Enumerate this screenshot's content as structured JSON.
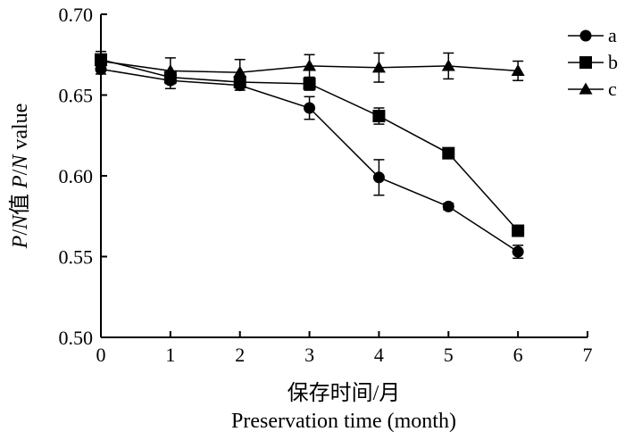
{
  "chart_data": {
    "type": "line",
    "xlabel_cn": "保存时间/月",
    "xlabel_en": "Preservation time (month)",
    "ylabel": {
      "p1": "P",
      "s1": "/",
      "n1": "N",
      "cn": "值 ",
      "p2": "P",
      "s2": "/",
      "n2": "N",
      "en": " value"
    },
    "xlim": [
      0,
      7
    ],
    "ylim": [
      0.5,
      0.7
    ],
    "x_ticks": [
      "0",
      "1",
      "2",
      "3",
      "4",
      "5",
      "6",
      "7"
    ],
    "y_ticks": [
      "0.50",
      "0.55",
      "0.60",
      "0.65",
      "0.70"
    ],
    "x_tick_values": [
      0,
      1,
      2,
      3,
      4,
      5,
      6,
      7
    ],
    "y_tick_values": [
      0.5,
      0.55,
      0.6,
      0.65,
      0.7
    ],
    "x": [
      0,
      1,
      2,
      3,
      4,
      5,
      6
    ],
    "series": [
      {
        "name": "a",
        "marker": "circle",
        "values": [
          0.666,
          0.659,
          0.656,
          0.642,
          0.599,
          0.581,
          0.553
        ],
        "errors": [
          0.003,
          0.005,
          0.003,
          0.007,
          0.011,
          0.002,
          0.004
        ]
      },
      {
        "name": "b",
        "marker": "square",
        "values": [
          0.672,
          0.661,
          0.658,
          0.657,
          0.637,
          0.614,
          0.566
        ],
        "errors": [
          0.003,
          0.003,
          0.003,
          0.004,
          0.005,
          0.002,
          0.002
        ]
      },
      {
        "name": "c",
        "marker": "triangle",
        "values": [
          0.671,
          0.665,
          0.664,
          0.668,
          0.667,
          0.668,
          0.665
        ],
        "errors": [
          0.006,
          0.008,
          0.008,
          0.007,
          0.009,
          0.008,
          0.006
        ]
      }
    ],
    "legend_position": "top-right",
    "grid": false
  }
}
